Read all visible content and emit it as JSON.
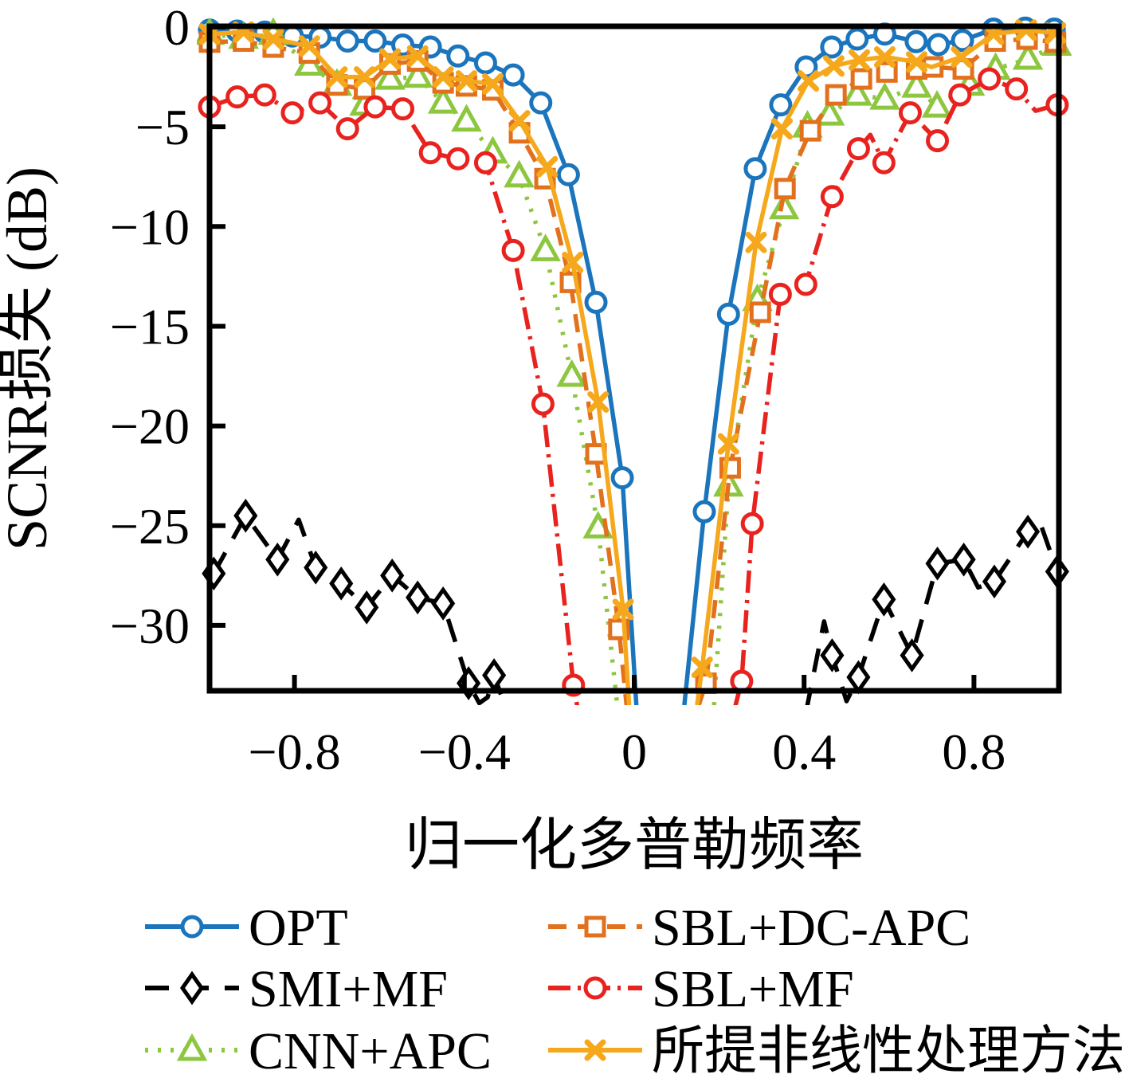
{
  "chart_data": {
    "type": "line",
    "xlabel": "归一化多普勒频率",
    "ylabel": "SCNR损失 (dB)",
    "xlim": [
      -1,
      1
    ],
    "ylim": [
      -33.3,
      0
    ],
    "grid": false,
    "legend_position": "below",
    "xticks": [
      -0.8,
      -0.4,
      0,
      0.4,
      0.8
    ],
    "xtick_labels": [
      "−0.8",
      "−0.4",
      "0",
      "0.4",
      "0.8"
    ],
    "yticks": [
      0,
      -5,
      -10,
      -15,
      -20,
      -25,
      -30
    ],
    "ytick_labels": [
      "0",
      "−5",
      "−10",
      "−15",
      "−20",
      "−25",
      "−30"
    ],
    "series": [
      {
        "name": "OPT",
        "color": "#1b75bc",
        "line_style": "solid",
        "marker": "circle",
        "segments": [
          [
            [
              -1,
              -0.15,
              1
            ],
            [
              -0.935,
              -0.2,
              1
            ],
            [
              -0.87,
              -0.25,
              1
            ],
            [
              -0.805,
              -0.45,
              1
            ],
            [
              -0.74,
              -0.5,
              1
            ],
            [
              -0.675,
              -0.7,
              1
            ],
            [
              -0.61,
              -0.7,
              1
            ],
            [
              -0.545,
              -0.9,
              1
            ],
            [
              -0.48,
              -1.0,
              1
            ],
            [
              -0.415,
              -1.45,
              1
            ],
            [
              -0.35,
              -1.8,
              1
            ],
            [
              -0.285,
              -2.4,
              1
            ],
            [
              -0.22,
              -3.8,
              1
            ],
            [
              -0.155,
              -7.4,
              1
            ],
            [
              -0.09,
              -13.8,
              1
            ],
            [
              -0.028,
              -22.6,
              1
            ],
            [
              0.005,
              -34,
              0
            ]
          ],
          [
            [
              0.118,
              -34,
              0
            ],
            [
              0.165,
              -24.3,
              1
            ],
            [
              0.222,
              -14.4,
              1
            ],
            [
              0.285,
              -7.1,
              1
            ],
            [
              0.345,
              -3.9,
              1
            ],
            [
              0.405,
              -2.0,
              1
            ],
            [
              0.465,
              -1.0,
              1
            ],
            [
              0.525,
              -0.6,
              1
            ],
            [
              0.59,
              -0.35,
              1
            ],
            [
              0.664,
              -0.73,
              1
            ],
            [
              0.716,
              -0.88,
              1
            ],
            [
              0.773,
              -0.67,
              1
            ],
            [
              0.846,
              -0.1,
              1
            ],
            [
              0.921,
              -0.05,
              1
            ],
            [
              0.989,
              -0.1,
              1
            ]
          ]
        ]
      },
      {
        "name": "SMI+MF",
        "color": "#000000",
        "line_style": "dashed",
        "marker": "diamond",
        "segments": [
          [
            [
              -0.99,
              -27.4,
              1
            ],
            [
              -0.915,
              -24.5,
              1
            ],
            [
              -0.84,
              -26.7,
              1
            ],
            [
              -0.79,
              -24.7,
              0
            ],
            [
              -0.75,
              -27.1,
              1
            ],
            [
              -0.69,
              -27.9,
              1
            ],
            [
              -0.63,
              -29.1,
              1
            ],
            [
              -0.57,
              -27.5,
              1
            ],
            [
              -0.51,
              -28.6,
              1
            ],
            [
              -0.45,
              -28.9,
              1
            ],
            [
              -0.39,
              -32.9,
              1
            ],
            [
              -0.365,
              -33.9,
              0
            ],
            [
              -0.345,
              -33.6,
              0
            ],
            [
              -0.33,
              -32.5,
              1
            ],
            [
              -0.3,
              -34.3,
              0
            ]
          ],
          [
            [
              0.405,
              -34.3,
              0
            ],
            [
              0.447,
              -29.8,
              0
            ],
            [
              0.466,
              -31.5,
              1
            ],
            [
              0.5,
              -33.8,
              0
            ],
            [
              0.528,
              -32.6,
              1
            ],
            [
              0.588,
              -28.7,
              1
            ],
            [
              0.654,
              -31.5,
              1
            ],
            [
              0.714,
              -26.9,
              1
            ],
            [
              0.776,
              -26.7,
              1
            ],
            [
              0.81,
              -28.1,
              0
            ],
            [
              0.848,
              -27.8,
              1
            ],
            [
              0.927,
              -25.3,
              1
            ],
            [
              0.955,
              -24.8,
              0
            ],
            [
              0.996,
              -27.3,
              1
            ]
          ]
        ]
      },
      {
        "name": "CNN+APC",
        "color": "#8dc63f",
        "line_style": "dotted",
        "marker": "triangle",
        "segments": [
          [
            [
              -1,
              -0.35,
              1
            ],
            [
              -0.92,
              -0.55,
              1
            ],
            [
              -0.85,
              -0.35,
              1
            ],
            [
              -0.765,
              -1.9,
              1
            ],
            [
              -0.7,
              -2.9,
              1
            ],
            [
              -0.635,
              -3.9,
              1
            ],
            [
              -0.575,
              -2.6,
              1
            ],
            [
              -0.51,
              -2.5,
              1
            ],
            [
              -0.45,
              -3.8,
              1
            ],
            [
              -0.395,
              -4.7,
              1
            ],
            [
              -0.333,
              -6.3,
              1
            ],
            [
              -0.271,
              -7.5,
              1
            ],
            [
              -0.209,
              -11.2,
              1
            ],
            [
              -0.147,
              -17.5,
              1
            ],
            [
              -0.085,
              -25.1,
              1
            ],
            [
              -0.04,
              -34,
              0
            ]
          ],
          [
            [
              0.188,
              -34,
              0
            ],
            [
              0.222,
              -23.0,
              1
            ],
            [
              0.29,
              -13.7,
              1
            ],
            [
              0.353,
              -9.1,
              1
            ],
            [
              0.408,
              -5.0,
              1
            ],
            [
              0.46,
              -4.4,
              1
            ],
            [
              0.525,
              -3.4,
              1
            ],
            [
              0.59,
              -3.6,
              1
            ],
            [
              0.665,
              -3.0,
              1
            ],
            [
              0.713,
              -4.0,
              1
            ],
            [
              0.79,
              -2.9,
              1
            ],
            [
              0.851,
              -2.1,
              1
            ],
            [
              0.927,
              -1.6,
              1
            ],
            [
              0.995,
              -0.9,
              1
            ]
          ]
        ]
      },
      {
        "name": "SBL+DC-APC",
        "color": "#e2711d",
        "line_style": "dashed",
        "marker": "square",
        "segments": [
          [
            [
              -1,
              -0.75,
              1
            ],
            [
              -0.92,
              -0.7,
              1
            ],
            [
              -0.85,
              -1.0,
              1
            ],
            [
              -0.765,
              -1.3,
              1
            ],
            [
              -0.7,
              -2.9,
              1
            ],
            [
              -0.635,
              -3.1,
              1
            ],
            [
              -0.575,
              -1.85,
              1
            ],
            [
              -0.51,
              -1.7,
              1
            ],
            [
              -0.45,
              -2.8,
              1
            ],
            [
              -0.395,
              -2.95,
              1
            ],
            [
              -0.333,
              -3.15,
              1
            ],
            [
              -0.27,
              -5.3,
              1
            ],
            [
              -0.21,
              -7.6,
              1
            ],
            [
              -0.15,
              -12.8,
              1
            ],
            [
              -0.09,
              -21.4,
              1
            ],
            [
              -0.036,
              -30.2,
              1
            ],
            [
              -0.018,
              -34,
              0
            ]
          ],
          [
            [
              0.152,
              -34,
              0
            ],
            [
              0.169,
              -32.9,
              1
            ],
            [
              0.226,
              -22.1,
              1
            ],
            [
              0.297,
              -14.3,
              1
            ],
            [
              0.355,
              -8.1,
              1
            ],
            [
              0.415,
              -5.2,
              1
            ],
            [
              0.475,
              -3.4,
              1
            ],
            [
              0.535,
              -2.6,
              1
            ],
            [
              0.595,
              -2.25,
              1
            ],
            [
              0.665,
              -2.1,
              1
            ],
            [
              0.703,
              -2.0,
              1
            ],
            [
              0.775,
              -2.1,
              1
            ],
            [
              0.85,
              -0.7,
              1
            ],
            [
              0.925,
              -0.6,
              1
            ],
            [
              0.992,
              -0.75,
              1
            ]
          ]
        ]
      },
      {
        "name": "SBL+MF",
        "color": "#e8231f",
        "line_style": "dashdot",
        "marker": "circle",
        "segments": [
          [
            [
              -1,
              -4.0,
              1
            ],
            [
              -0.935,
              -3.5,
              1
            ],
            [
              -0.87,
              -3.4,
              1
            ],
            [
              -0.805,
              -4.3,
              1
            ],
            [
              -0.74,
              -3.8,
              1
            ],
            [
              -0.675,
              -5.1,
              1
            ],
            [
              -0.61,
              -4.0,
              1
            ],
            [
              -0.545,
              -4.1,
              1
            ],
            [
              -0.48,
              -6.3,
              1
            ],
            [
              -0.415,
              -6.6,
              1
            ],
            [
              -0.35,
              -6.8,
              1
            ],
            [
              -0.285,
              -11.2,
              1
            ],
            [
              -0.215,
              -18.9,
              1
            ],
            [
              -0.143,
              -33.0,
              1
            ],
            [
              -0.132,
              -34.3,
              0
            ]
          ],
          [
            [
              0.235,
              -34.3,
              0
            ],
            [
              0.253,
              -32.8,
              1
            ],
            [
              0.278,
              -24.9,
              1
            ],
            [
              0.344,
              -13.4,
              1
            ],
            [
              0.404,
              -12.9,
              1
            ],
            [
              0.466,
              -8.5,
              1
            ],
            [
              0.528,
              -6.1,
              1
            ],
            [
              0.556,
              -5.4,
              0
            ],
            [
              0.588,
              -6.8,
              1
            ],
            [
              0.65,
              -4.3,
              1
            ],
            [
              0.714,
              -5.7,
              1
            ],
            [
              0.767,
              -3.4,
              1
            ],
            [
              0.836,
              -2.6,
              1
            ],
            [
              0.9,
              -3.1,
              1
            ],
            [
              0.945,
              -4.2,
              0
            ],
            [
              0.996,
              -3.9,
              1
            ]
          ]
        ]
      },
      {
        "name": "所提非线性处理方法",
        "color": "#f5a81c",
        "line_style": "solid",
        "marker": "x",
        "segments": [
          [
            [
              -1,
              -0.35,
              1
            ],
            [
              -0.92,
              -0.25,
              1
            ],
            [
              -0.85,
              -0.6,
              1
            ],
            [
              -0.765,
              -0.95,
              1
            ],
            [
              -0.7,
              -2.5,
              1
            ],
            [
              -0.635,
              -2.5,
              1
            ],
            [
              -0.575,
              -1.6,
              1
            ],
            [
              -0.51,
              -1.45,
              1
            ],
            [
              -0.45,
              -2.5,
              1
            ],
            [
              -0.395,
              -2.7,
              1
            ],
            [
              -0.333,
              -2.85,
              1
            ],
            [
              -0.27,
              -4.7,
              1
            ],
            [
              -0.205,
              -7.0,
              1
            ],
            [
              -0.145,
              -11.8,
              1
            ],
            [
              -0.085,
              -18.8,
              1
            ],
            [
              -0.026,
              -29.2,
              1
            ],
            [
              -0.012,
              -34,
              0
            ]
          ],
          [
            [
              0.148,
              -34,
              0
            ],
            [
              0.16,
              -32.1,
              1
            ],
            [
              0.222,
              -20.9,
              1
            ],
            [
              0.287,
              -10.8,
              1
            ],
            [
              0.348,
              -5.1,
              1
            ],
            [
              0.41,
              -2.7,
              1
            ],
            [
              0.47,
              -1.95,
              1
            ],
            [
              0.53,
              -1.65,
              1
            ],
            [
              0.59,
              -1.5,
              1
            ],
            [
              0.665,
              -1.75,
              1
            ],
            [
              0.7,
              -2.0,
              0
            ],
            [
              0.771,
              -1.5,
              1
            ],
            [
              0.846,
              -0.35,
              1
            ],
            [
              0.923,
              -0.15,
              1
            ],
            [
              0.992,
              -0.3,
              1
            ]
          ]
        ]
      }
    ]
  },
  "axes": {
    "x_label": "归一化多普勒频率",
    "y_label": "SCNR损失 (dB)"
  },
  "legend": {
    "items": [
      {
        "label": "OPT"
      },
      {
        "label": "SMI+MF"
      },
      {
        "label": "CNN+APC"
      },
      {
        "label": "SBL+DC-APC"
      },
      {
        "label": "SBL+MF"
      },
      {
        "label": "所提非线性处理方法"
      }
    ]
  }
}
